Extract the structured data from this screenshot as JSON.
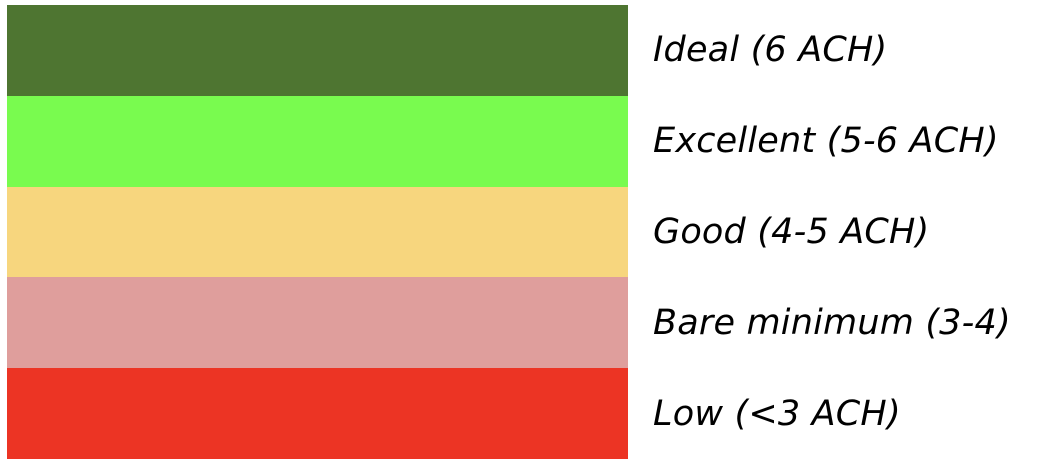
{
  "legend": {
    "items": [
      {
        "label": "Ideal (6 ACH)",
        "color": "#4E7531"
      },
      {
        "label": "Excellent (5-6 ACH)",
        "color": "#79FB4F"
      },
      {
        "label": "Good (4-5 ACH)",
        "color": "#F7D67E"
      },
      {
        "label": "Bare minimum (3-4)",
        "color": "#DF9E9C"
      },
      {
        "label": "Low (<3 ACH)",
        "color": "#EC3424"
      }
    ]
  }
}
